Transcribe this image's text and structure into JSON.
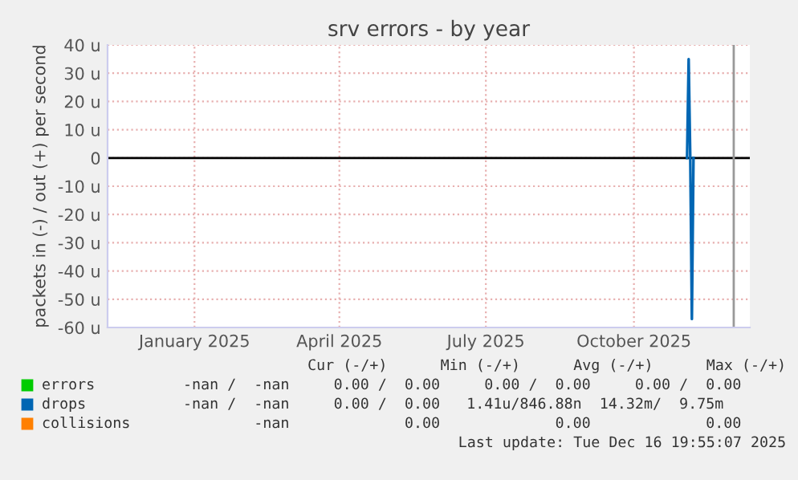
{
  "chart_data": {
    "type": "line",
    "title": "srv errors - by year",
    "ylabel": "packets in (-) / out (+) per second",
    "xlim": [
      "2024-11-22",
      "2025-12-26"
    ],
    "xticks": [
      {
        "value": "2025-01-15",
        "label": "January 2025"
      },
      {
        "value": "2025-04-15",
        "label": "April 2025"
      },
      {
        "value": "2025-07-15",
        "label": "July 2025"
      },
      {
        "value": "2025-10-15",
        "label": "October 2025"
      }
    ],
    "ylim": [
      -60,
      40
    ],
    "yticks": [
      {
        "value": -60,
        "label": "-60 u"
      },
      {
        "value": -50,
        "label": "-50 u"
      },
      {
        "value": -40,
        "label": "-40 u"
      },
      {
        "value": -30,
        "label": "-30 u"
      },
      {
        "value": -20,
        "label": "-20 u"
      },
      {
        "value": -10,
        "label": "-10 u"
      },
      {
        "value": 0,
        "label": "0"
      },
      {
        "value": 10,
        "label": "10 u"
      },
      {
        "value": 20,
        "label": "20 u"
      },
      {
        "value": 30,
        "label": "30 u"
      },
      {
        "value": 40,
        "label": "40 u"
      }
    ],
    "grid": true,
    "line_style": "solid",
    "legend": "bottom",
    "series": [
      {
        "name": "errors",
        "color": "#00cc00"
      },
      {
        "name": "drops",
        "color": "#0066b3",
        "x": [
          "2025-11-17",
          "2025-11-18",
          "2025-11-19",
          "2025-11-20",
          "2025-11-21"
        ],
        "values": [
          0,
          35,
          0,
          -57,
          0
        ]
      },
      {
        "name": "collisions",
        "color": "#ff8000"
      }
    ],
    "ref_lines": [
      {
        "axis": "y",
        "value": 0,
        "color": "#000000"
      },
      {
        "axis": "x",
        "value": "2025-12-16",
        "color": "#999999"
      }
    ],
    "annotations": [
      "Cur (-/+)      Min (-/+)      Avg (-/+)      Max (-/+)",
      "-nan /  -nan     0.00 /  0.00     0.00 /  0.00     0.00 /  0.00",
      "-nan /  -nan     0.00 /  0.00   1.41u/846.88n  14.32m/  9.75m",
      "        -nan             0.00             0.00             0.00",
      "Last update: Tue Dec 16 19:55:07 2025"
    ]
  }
}
